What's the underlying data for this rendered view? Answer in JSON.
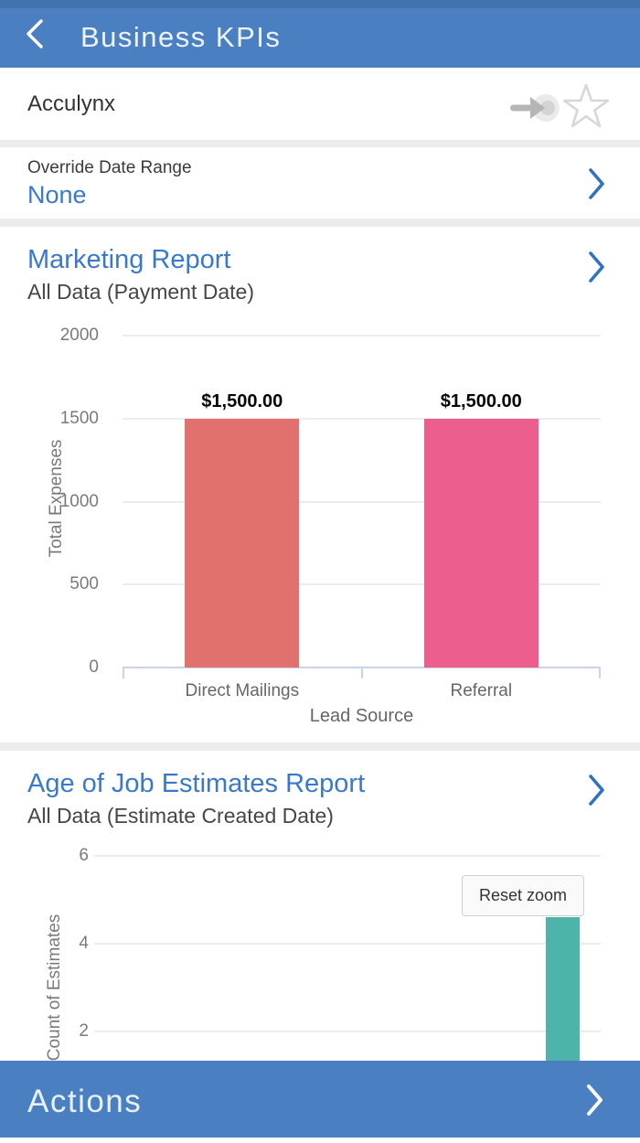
{
  "header": {
    "title": "Business KPIs",
    "background_color": "#4a80c1"
  },
  "account_row": {
    "name": "Acculynx",
    "icons": [
      "send-to-target-icon",
      "star-icon"
    ]
  },
  "override": {
    "label": "Override Date Range",
    "value": "None"
  },
  "actions_bar": {
    "label": "Actions"
  },
  "colors": {
    "nav_blue": "#4a80c1",
    "link_blue": "#3a79ca",
    "chevron_blue": "#2e72c4",
    "separator_grey": "#ececec",
    "axis_light_blue": "#c9d4e8",
    "gridline_grey": "#ededed",
    "tick_text_grey": "#7a7a7a",
    "bar_salmon": "#e0716e",
    "bar_pink": "#ec5e8e",
    "bar_teal": "#4db4ab"
  },
  "chart_data": [
    {
      "type": "bar",
      "title": "Marketing Report",
      "subtitle": "All Data (Payment Date)",
      "categories": [
        "Direct Mailings",
        "Referral"
      ],
      "values": [
        1500,
        1500
      ],
      "value_labels": [
        "$1,500.00",
        "$1,500.00"
      ],
      "bar_colors": [
        "#e0716e",
        "#ec5e8e"
      ],
      "xlabel": "Lead Source",
      "ylabel": "Total Expenses",
      "ylim": [
        0,
        2000
      ],
      "yticks": [
        0,
        500,
        1000,
        1500,
        2000
      ],
      "grid": true,
      "legend": false
    },
    {
      "type": "bar",
      "title": "Age of Job Estimates Report",
      "subtitle": "All Data (Estimate Created Date)",
      "ylabel": "Count of Estimates",
      "yticks": [
        2,
        4,
        6
      ],
      "ylim_visible": [
        1.3,
        6.45
      ],
      "zoomed": true,
      "overlay_button": "Reset zoom",
      "bars": [
        {
          "color": "#4db4ab",
          "value_estimated": 5,
          "visible_top_value": 4.6,
          "note": "bar top hidden behind Reset zoom button; chart bottom cut off by Actions bar"
        }
      ],
      "grid": true,
      "legend": false
    }
  ]
}
